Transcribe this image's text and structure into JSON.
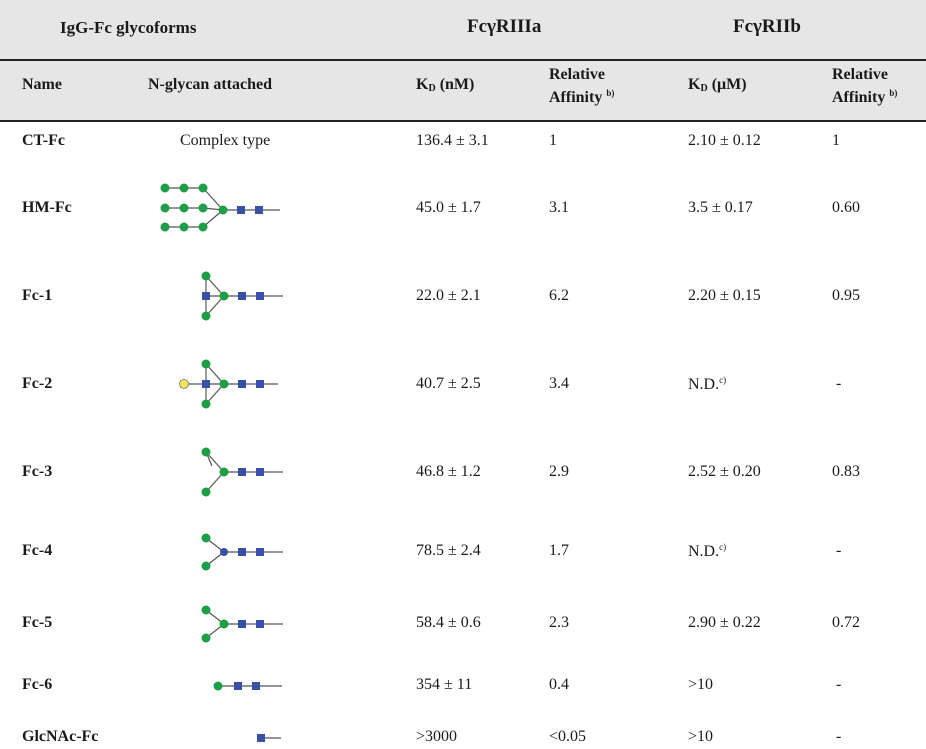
{
  "table": {
    "group_headers": {
      "glycoforms": "IgG-Fc glycoforms",
      "fcr3a": "FcγRIIIa",
      "fcr2b": "FcγRIIb"
    },
    "columns": {
      "name": "Name",
      "glycan": "N-glycan attached",
      "kd_a_main": "K",
      "kd_a_sub": "D",
      "kd_a_unit": " (nM)",
      "rel_a_line1": "Relative",
      "rel_a_line2": "Affinity",
      "rel_a_note": "b)",
      "kd_b_main": "K",
      "kd_b_sub": "D",
      "kd_b_unit": " (μM)",
      "rel_b_line1": "Relative",
      "rel_b_line2": "Affinity",
      "rel_b_note": "b)"
    },
    "rows": [
      {
        "name": "CT-Fc",
        "glycan_text": "Complex type",
        "kd_a": "136.4 ± 3.1",
        "rel_a": "1",
        "kd_b": "2.10 ± 0.12",
        "kd_b_note": "",
        "rel_b": "1"
      },
      {
        "name": "HM-Fc",
        "glycan_icon": "high-mannose-glycan-icon",
        "kd_a": "45.0 ± 1.7",
        "rel_a": "3.1",
        "kd_b": "3.5 ± 0.17",
        "kd_b_note": "",
        "rel_b": "0.60"
      },
      {
        "name": "Fc-1",
        "glycan_icon": "glycan-fc1-icon",
        "kd_a": "22.0 ± 2.1",
        "rel_a": "6.2",
        "kd_b": "2.20 ± 0.15",
        "kd_b_note": "",
        "rel_b": "0.95"
      },
      {
        "name": "Fc-2",
        "glycan_icon": "glycan-fc2-icon",
        "kd_a": "40.7 ± 2.5",
        "rel_a": "3.4",
        "kd_b": "N.D.",
        "kd_b_note": "c)",
        "rel_b": "-"
      },
      {
        "name": "Fc-3",
        "glycan_icon": "glycan-fc3-icon",
        "kd_a": "46.8 ± 1.2",
        "rel_a": "2.9",
        "kd_b": "2.52 ± 0.20",
        "kd_b_note": "",
        "rel_b": "0.83"
      },
      {
        "name": "Fc-4",
        "glycan_icon": "glycan-fc4-icon",
        "kd_a": "78.5 ± 2.4",
        "rel_a": "1.7",
        "kd_b": "N.D.",
        "kd_b_note": "c)",
        "rel_b": "-"
      },
      {
        "name": "Fc-5",
        "glycan_icon": "glycan-fc5-icon",
        "kd_a": "58.4 ± 0.6",
        "rel_a": "2.3",
        "kd_b": "2.90 ± 0.22",
        "kd_b_note": "",
        "rel_b": "0.72"
      },
      {
        "name": "Fc-6",
        "glycan_icon": "glycan-fc6-icon",
        "kd_a": "354 ± 11",
        "rel_a": "0.4",
        "kd_b": ">10",
        "kd_b_note": "",
        "rel_b": "-"
      },
      {
        "name": "GlcNAc-Fc",
        "glycan_icon": "glcnac-glycan-icon",
        "kd_a": ">3000",
        "rel_a": "<0.05",
        "kd_b": ">10",
        "kd_b_note": "",
        "rel_b": "-"
      }
    ],
    "colors": {
      "header_band": "#e6e6e6",
      "mannose": "#1f9e4a",
      "glcnac": "#3a4fa8",
      "galactose": "#f2e15a"
    }
  }
}
